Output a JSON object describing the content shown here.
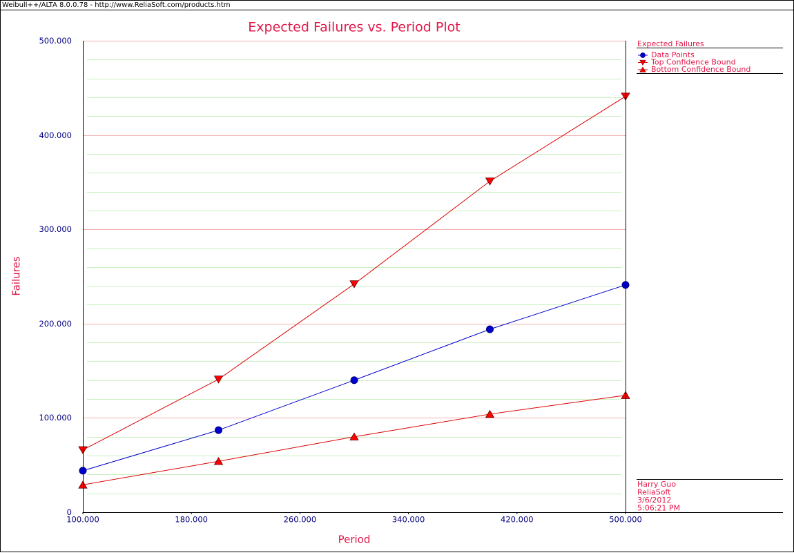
{
  "window_title": "Weibull++/ALTA 8.0.0.78 - http://www.ReliaSoft.com/products.htm",
  "chart_data": {
    "type": "line",
    "title": "Expected Failures vs. Period Plot",
    "xlabel": "Period",
    "ylabel": "Failures",
    "x": [
      100,
      200,
      300,
      400,
      500
    ],
    "series": [
      {
        "name": "Data Points",
        "color": "#0000cc",
        "line_color": "#0000cc",
        "marker": "circle",
        "values": [
          44,
          87,
          140,
          194,
          241
        ]
      },
      {
        "name": "Top Confidence Bound",
        "color": "#ff0000",
        "line_color": "#dd0000",
        "marker": "triangle-down",
        "values": [
          66,
          141,
          242,
          351,
          441
        ]
      },
      {
        "name": "Bottom Confidence Bound",
        "color": "#ff0000",
        "line_color": "#dd0000",
        "marker": "triangle-up",
        "values": [
          29,
          54,
          80,
          104,
          124
        ]
      }
    ],
    "xlim": [
      100,
      500
    ],
    "ylim": [
      0,
      500
    ],
    "xticks": [
      {
        "value": 100,
        "label": "100.000"
      },
      {
        "value": 180,
        "label": "180.000"
      },
      {
        "value": 260,
        "label": "260.000"
      },
      {
        "value": 340,
        "label": "340.000"
      },
      {
        "value": 420,
        "label": "420.000"
      },
      {
        "value": 500,
        "label": "500.000"
      }
    ],
    "yticks": [
      0,
      {
        "value": 100,
        "label": "100.000"
      },
      {
        "value": 200,
        "label": "200.000"
      },
      {
        "value": 300,
        "label": "300.000"
      },
      {
        "value": 400,
        "label": "400.000"
      },
      {
        "value": 500,
        "label": "500.000"
      }
    ],
    "yminorticks": [
      20,
      40,
      60,
      80,
      120,
      140,
      160,
      180,
      220,
      240,
      260,
      280,
      320,
      340,
      360,
      380,
      420,
      440,
      460,
      480
    ],
    "grid": true,
    "legend": {
      "title": "Expected Failures",
      "position": "right"
    },
    "annotations": [
      "Harry Guo",
      "ReliaSoft",
      "3/6/2012",
      "5:06:21 PM"
    ]
  }
}
